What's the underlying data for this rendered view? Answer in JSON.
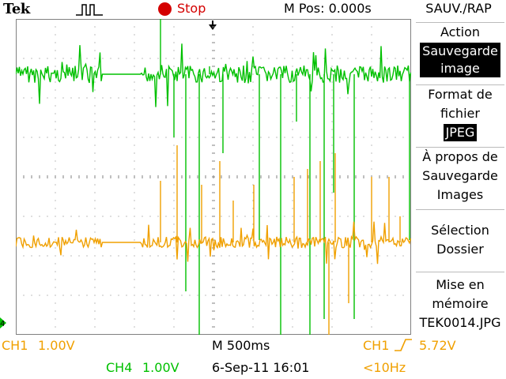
{
  "header": {
    "logo": "Tek",
    "acquisition_icon": "pulse-icon",
    "run_state": "Stop",
    "run_state_color": "#d40000",
    "horizontal_position_label": "M Pos:",
    "horizontal_position_value": "0.000s"
  },
  "menu": {
    "title": "SAUV./RAP",
    "items": [
      {
        "label_lines": [
          "Action"
        ],
        "value": "Sauvegarde image",
        "value_lines": [
          "Sauvegarde",
          "image"
        ]
      },
      {
        "label_lines": [
          "Format de",
          "fichier"
        ],
        "value": "JPEG"
      },
      {
        "label_lines": [
          "À propos de",
          "Sauvegarde",
          "Images"
        ]
      },
      {
        "label_lines": [
          "Sélection",
          "Dossier"
        ]
      },
      {
        "label_lines": [
          "Mise en",
          "mémoire"
        ],
        "value": "TEK0014.JPG"
      }
    ]
  },
  "readouts": {
    "ch1_label": "CH1",
    "ch1_scale": "1.00V",
    "timebase": "M 500ms",
    "trigger_source": "CH1",
    "trigger_level": "5.72V",
    "ch4_label": "CH4",
    "ch4_scale": "1.00V",
    "date": "6-Sep-11",
    "time": "16:01",
    "frequency": "<10Hz"
  },
  "colors": {
    "ch1": "#f0a000",
    "ch4": "#00c000",
    "grid": "#808080"
  },
  "display": {
    "divisions_horizontal": 10,
    "divisions_vertical": 8
  }
}
